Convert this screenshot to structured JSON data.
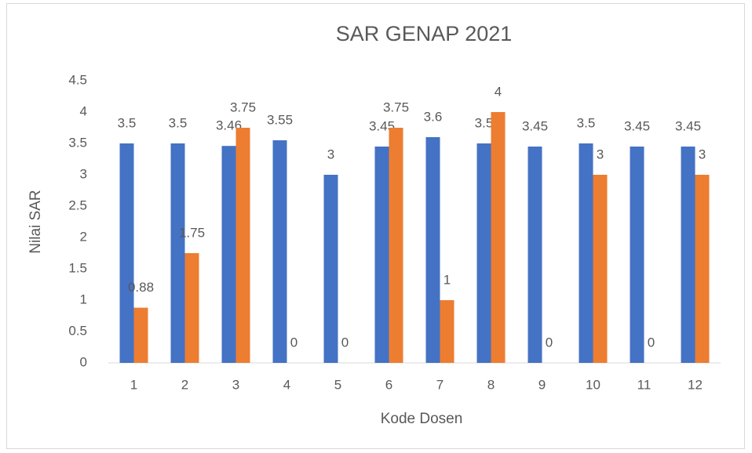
{
  "chart_data": {
    "type": "bar",
    "title": "SAR GENAP 2021",
    "x_label": "Kode Dosen",
    "y_label": "Nilai SAR",
    "categories": [
      "1",
      "2",
      "3",
      "4",
      "5",
      "6",
      "7",
      "8",
      "9",
      "10",
      "11",
      "12"
    ],
    "series": [
      {
        "color": "#4472c4",
        "values": [
          3.5,
          3.5,
          3.46,
          3.55,
          3,
          3.45,
          3.6,
          3.5,
          3.45,
          3.5,
          3.45,
          3.45
        ]
      },
      {
        "color": "#ed7d31",
        "values": [
          0.88,
          1.75,
          3.75,
          0,
          0,
          3.75,
          1,
          4,
          0,
          3,
          0,
          3
        ]
      }
    ],
    "ylim": [
      0,
      4.5
    ],
    "yticks": [
      0,
      0.5,
      1,
      1.5,
      2,
      2.5,
      3,
      3.5,
      4,
      4.5
    ],
    "grid": false
  }
}
